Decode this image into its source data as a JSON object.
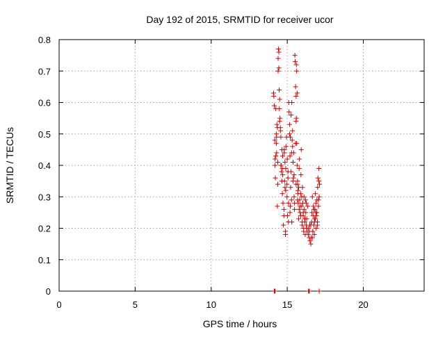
{
  "chart_data": {
    "type": "scatter",
    "title": "Day 192 of 2015, SRMTID for receiver ucor",
    "xlabel": "GPS time / hours",
    "ylabel": "SRMTID / TECUs",
    "xlim": [
      0,
      24
    ],
    "ylim": [
      0,
      0.8
    ],
    "xticks": [
      0,
      5,
      10,
      15,
      20
    ],
    "yticks": [
      0,
      0.1,
      0.2,
      0.3,
      0.4,
      0.5,
      0.6,
      0.7,
      0.8
    ],
    "xtick_labels": [
      "0",
      "5",
      "10",
      "15",
      "20"
    ],
    "ytick_labels": [
      "0",
      "0.1",
      "0.2",
      "0.3",
      "0.4",
      "0.5",
      "0.6",
      "0.7",
      "0.8"
    ],
    "grid": true,
    "marker": "+",
    "marker_color": "#cc0000",
    "series": [
      {
        "x": [
          14.1,
          14.15,
          14.2,
          14.22,
          14.25,
          14.28,
          14.3,
          14.32,
          14.35,
          14.38,
          14.4,
          14.42,
          14.45,
          14.47,
          14.5,
          14.52,
          14.55,
          14.58,
          14.6,
          14.62,
          14.65,
          14.68,
          14.7,
          14.72,
          14.75,
          14.78,
          14.8,
          14.82,
          14.85,
          14.88,
          14.9,
          14.92,
          14.95,
          14.98,
          15.0,
          15.02,
          15.05,
          15.08,
          15.1,
          15.12,
          15.15,
          15.18,
          15.2,
          15.22,
          15.25,
          15.28,
          15.3,
          15.32,
          15.35,
          15.38,
          15.4,
          15.42,
          15.45,
          15.48,
          15.5,
          15.52,
          15.55,
          15.58,
          15.6,
          15.62,
          15.65,
          15.68,
          15.7,
          15.72,
          15.75,
          15.78,
          15.8,
          15.82,
          15.85,
          15.88,
          15.9,
          15.92,
          15.95,
          15.98,
          16.0,
          16.02,
          16.05,
          16.08,
          16.1,
          16.12,
          16.15,
          16.18,
          16.2,
          16.22,
          16.25,
          16.28,
          16.3,
          16.35,
          16.4,
          16.45,
          16.5,
          16.55,
          16.6,
          16.62,
          16.65,
          16.68,
          16.7,
          16.72,
          16.75,
          16.78,
          16.8,
          16.82,
          16.85,
          16.88,
          16.9,
          16.92,
          16.95,
          16.98,
          17.0,
          17.02,
          17.05,
          17.08,
          17.1,
          17.12,
          14.4,
          14.45,
          14.5,
          14.55,
          14.35,
          14.3,
          14.25,
          14.2,
          15.6,
          15.62,
          15.65,
          15.58,
          15.55,
          15.68,
          15.7,
          15.3,
          15.25,
          15.2,
          14.8,
          14.85,
          14.7,
          14.65,
          14.9,
          15.05,
          15.15,
          15.35,
          15.45,
          15.75,
          15.85,
          15.95,
          16.05,
          16.15,
          16.25,
          16.45,
          16.55,
          16.65,
          16.75,
          16.85,
          16.95,
          17.05,
          14.12,
          14.18,
          14.28,
          14.38,
          14.48,
          14.58,
          14.68,
          14.78,
          14.88,
          14.98,
          15.08,
          15.18,
          15.28,
          15.38,
          15.48,
          15.58,
          15.68,
          15.78,
          15.88,
          15.98,
          16.08,
          16.18,
          16.28,
          16.38,
          16.48,
          16.58,
          16.68,
          16.78,
          16.88,
          16.98,
          17.08,
          14.15,
          14.18,
          14.2,
          16.4,
          16.42,
          16.45,
          17.1
        ],
        "y": [
          0.63,
          0.59,
          0.42,
          0.36,
          0.58,
          0.47,
          0.44,
          0.53,
          0.27,
          0.34,
          0.7,
          0.77,
          0.76,
          0.64,
          0.61,
          0.55,
          0.52,
          0.49,
          0.4,
          0.38,
          0.45,
          0.31,
          0.37,
          0.28,
          0.21,
          0.26,
          0.44,
          0.35,
          0.33,
          0.18,
          0.39,
          0.46,
          0.49,
          0.3,
          0.42,
          0.24,
          0.36,
          0.28,
          0.6,
          0.57,
          0.53,
          0.43,
          0.27,
          0.33,
          0.38,
          0.29,
          0.22,
          0.48,
          0.51,
          0.41,
          0.36,
          0.44,
          0.3,
          0.26,
          0.75,
          0.73,
          0.65,
          0.62,
          0.55,
          0.47,
          0.4,
          0.35,
          0.32,
          0.28,
          0.23,
          0.39,
          0.42,
          0.29,
          0.25,
          0.31,
          0.37,
          0.45,
          0.27,
          0.21,
          0.33,
          0.28,
          0.24,
          0.2,
          0.3,
          0.26,
          0.22,
          0.18,
          0.29,
          0.25,
          0.21,
          0.23,
          0.19,
          0.27,
          0.2,
          0.17,
          0.16,
          0.15,
          0.22,
          0.25,
          0.3,
          0.19,
          0.24,
          0.27,
          0.21,
          0.18,
          0.23,
          0.26,
          0.31,
          0.28,
          0.2,
          0.24,
          0.29,
          0.22,
          0.33,
          0.36,
          0.27,
          0.39,
          0.3,
          0.34,
          0.74,
          0.71,
          0.54,
          0.51,
          0.52,
          0.49,
          0.43,
          0.4,
          0.72,
          0.7,
          0.63,
          0.54,
          0.47,
          0.34,
          0.31,
          0.6,
          0.56,
          0.49,
          0.45,
          0.41,
          0.43,
          0.35,
          0.32,
          0.38,
          0.5,
          0.46,
          0.37,
          0.33,
          0.27,
          0.3,
          0.25,
          0.23,
          0.28,
          0.19,
          0.21,
          0.17,
          0.26,
          0.23,
          0.25,
          0.29,
          0.62,
          0.48,
          0.5,
          0.41,
          0.58,
          0.4,
          0.39,
          0.24,
          0.19,
          0.34,
          0.22,
          0.25,
          0.44,
          0.35,
          0.28,
          0.34,
          0.29,
          0.26,
          0.24,
          0.22,
          0.19,
          0.23,
          0.2,
          0.18,
          0.21,
          0.17,
          0.19,
          0.22,
          0.25,
          0.21,
          0.35,
          0.0,
          0.0,
          0.0,
          0.0,
          0.0,
          0.0,
          0.0
        ]
      }
    ]
  }
}
